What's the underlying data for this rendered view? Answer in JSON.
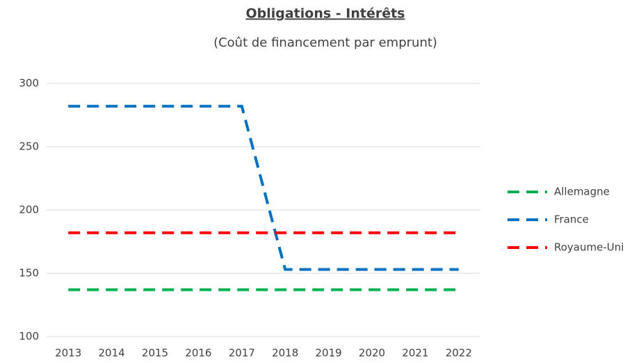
{
  "chart_data": {
    "type": "line",
    "title": "Obligations - Intérêts",
    "subtitle": "(Coût de financement par emprunt)",
    "categories": [
      "2013",
      "2014",
      "2015",
      "2016",
      "2017",
      "2018",
      "2019",
      "2020",
      "2021",
      "2022"
    ],
    "series": [
      {
        "name": "Allemagne",
        "color": "#00b050",
        "values": [
          137,
          137,
          137,
          137,
          137,
          137,
          137,
          137,
          137,
          137
        ]
      },
      {
        "name": "France",
        "color": "#0070c0",
        "values": [
          282,
          282,
          282,
          282,
          282,
          153,
          153,
          153,
          153,
          153
        ]
      },
      {
        "name": "Royaume-Uni",
        "color": "#ff0000",
        "values": [
          182,
          182,
          182,
          182,
          182,
          182,
          182,
          182,
          182,
          182
        ]
      }
    ],
    "ylim": [
      100,
      300
    ],
    "yticks": [
      100,
      150,
      200,
      250,
      300
    ],
    "grid": true,
    "legend": "right"
  }
}
